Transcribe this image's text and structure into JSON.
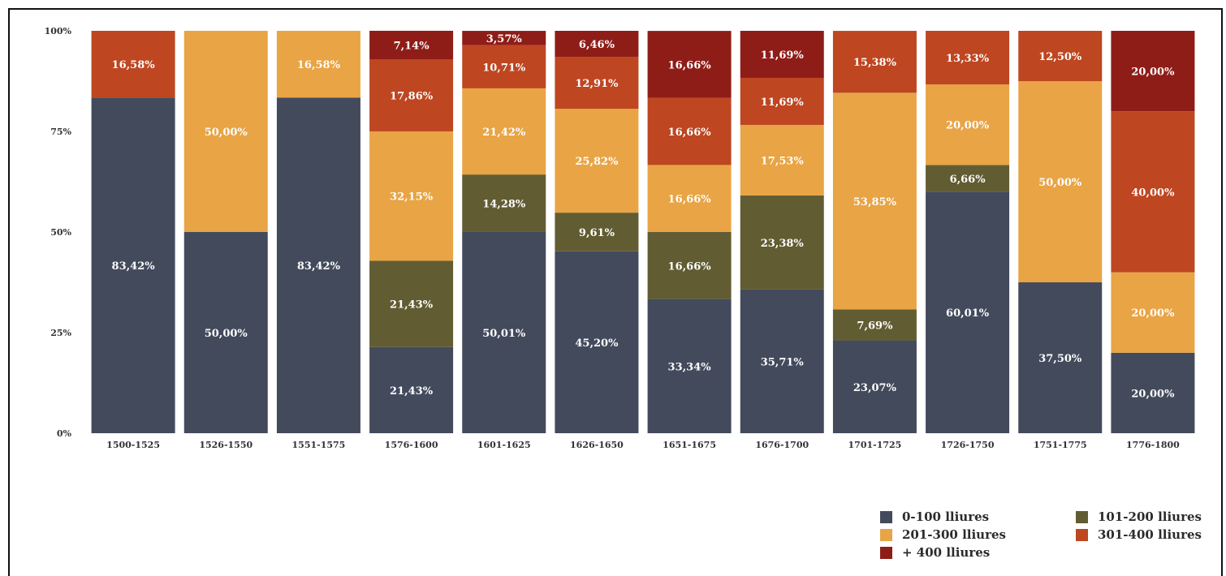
{
  "chart_data": {
    "type": "bar",
    "stacked": true,
    "title": "",
    "xlabel": "",
    "ylabel": "",
    "ylim": [
      0,
      100
    ],
    "yticks": [
      "0%",
      "25%",
      "50%",
      "75%",
      "100%"
    ],
    "categories": [
      "1500-1525",
      "1526-1550",
      "1551-1575",
      "1576-1600",
      "1601-1625",
      "1626-1650",
      "1651-1675",
      "1676-1700",
      "1701-1725",
      "1726-1750",
      "1751-1775",
      "1776-1800"
    ],
    "series": [
      {
        "name": "0-100 lliures",
        "color": "#434a5c",
        "values": [
          83.42,
          50.0,
          83.42,
          21.43,
          50.01,
          45.2,
          33.34,
          35.71,
          23.07,
          60.01,
          37.5,
          20.0
        ],
        "labels": [
          "83,42%",
          "50,00%",
          "83,42%",
          "21,43%",
          "50,01%",
          "45,20%",
          "33,34%",
          "35,71%",
          "23,07%",
          "60,01%",
          "37,50%",
          "20,00%"
        ]
      },
      {
        "name": "101-200 lliures",
        "color": "#625c33",
        "values": [
          0,
          0,
          0,
          21.43,
          14.28,
          9.61,
          16.66,
          23.38,
          7.69,
          6.66,
          0,
          0
        ],
        "labels": [
          "",
          "",
          "",
          "21,43%",
          "14,28%",
          "9,61%",
          "16,66%",
          "23,38%",
          "7,69%",
          "6,66%",
          "",
          ""
        ]
      },
      {
        "name": "201-300 lliures",
        "color": "#e8a445",
        "values": [
          0,
          50.0,
          16.58,
          32.15,
          21.42,
          25.82,
          16.66,
          17.53,
          53.85,
          20.0,
          50.0,
          20.0
        ],
        "labels": [
          "",
          "50,00%",
          "16,58%",
          "32,15%",
          "21,42%",
          "25,82%",
          "16,66%",
          "17,53%",
          "53,85%",
          "20,00%",
          "50,00%",
          "20,00%"
        ]
      },
      {
        "name": "301-400 lliures",
        "color": "#be4621",
        "values": [
          16.58,
          0,
          0,
          17.86,
          10.71,
          12.91,
          16.66,
          11.69,
          15.38,
          13.33,
          12.5,
          40.0
        ],
        "labels": [
          "16,58%",
          "",
          "",
          "17,86%",
          "10,71%",
          "12,91%",
          "16,66%",
          "11,69%",
          "15,38%",
          "13,33%",
          "12,50%",
          "40,00%"
        ]
      },
      {
        "name": "+ 400 lliures",
        "color": "#8e1d18",
        "values": [
          0,
          0,
          0,
          7.14,
          3.57,
          6.46,
          16.66,
          11.69,
          0,
          0,
          0,
          20.0
        ],
        "labels": [
          "",
          "",
          "",
          "7,14%",
          "3,57%",
          "6,46%",
          "16,66%",
          "11,69%",
          "",
          "",
          "",
          "20,00%"
        ]
      }
    ],
    "legend_position": "bottom-right",
    "grid": false
  }
}
